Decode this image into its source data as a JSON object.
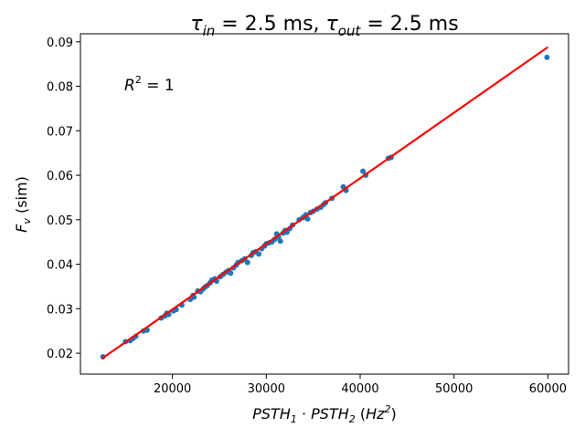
{
  "chart_data": {
    "type": "scatter",
    "title": {
      "tau": "τ",
      "in_sub": "in",
      "part1": " = 2.5 ms, ",
      "out_sub": "out",
      "part2": " = 2.5 ms"
    },
    "xlabel": {
      "v1": "PSTH",
      "s1": "1",
      "dot": " · ",
      "v2": "PSTH",
      "s2": "2",
      "unit_open": " (",
      "unit": "Hz",
      "unit_sup": "2",
      "unit_close": ")"
    },
    "ylabel": {
      "v": "F",
      "s": "v",
      "rest": " (sim)"
    },
    "annotation": {
      "v": "R",
      "sup": "2",
      "rest": " = 1"
    },
    "xlim": [
      10200,
      62200
    ],
    "ylim": [
      0.0153,
      0.0918
    ],
    "xticks": [
      20000,
      30000,
      40000,
      50000,
      60000
    ],
    "xtick_labels": [
      "20000",
      "30000",
      "40000",
      "50000",
      "60000"
    ],
    "yticks": [
      0.02,
      0.03,
      0.04,
      0.05,
      0.06,
      0.07,
      0.08,
      0.09
    ],
    "ytick_labels": [
      "0.02",
      "0.03",
      "0.04",
      "0.05",
      "0.06",
      "0.07",
      "0.08",
      "0.09"
    ],
    "grid": false,
    "colors": {
      "points": "#1f77b4",
      "fit": "#ff0000"
    },
    "fit_line": {
      "x": [
        12500,
        60000
      ],
      "y": [
        0.0188,
        0.0888
      ]
    },
    "points": [
      [
        12600,
        0.0192
      ],
      [
        15000,
        0.0226
      ],
      [
        15500,
        0.0228
      ],
      [
        15800,
        0.0233
      ],
      [
        16100,
        0.0238
      ],
      [
        16900,
        0.025
      ],
      [
        17300,
        0.0252
      ],
      [
        18800,
        0.0279
      ],
      [
        19200,
        0.0284
      ],
      [
        19400,
        0.029
      ],
      [
        19600,
        0.0287
      ],
      [
        20100,
        0.0295
      ],
      [
        20400,
        0.0298
      ],
      [
        21000,
        0.0308
      ],
      [
        21900,
        0.0321
      ],
      [
        22200,
        0.033
      ],
      [
        22300,
        0.0326
      ],
      [
        22700,
        0.034
      ],
      [
        23000,
        0.0338
      ],
      [
        23300,
        0.0345
      ],
      [
        23500,
        0.0349
      ],
      [
        23700,
        0.0352
      ],
      [
        24000,
        0.0358
      ],
      [
        24200,
        0.0364
      ],
      [
        24500,
        0.0367
      ],
      [
        24700,
        0.0362
      ],
      [
        25100,
        0.0372
      ],
      [
        25400,
        0.0377
      ],
      [
        25700,
        0.0382
      ],
      [
        26000,
        0.0386
      ],
      [
        26200,
        0.038
      ],
      [
        26500,
        0.0392
      ],
      [
        26800,
        0.0398
      ],
      [
        27000,
        0.0404
      ],
      [
        27400,
        0.0408
      ],
      [
        27700,
        0.0412
      ],
      [
        28000,
        0.0404
      ],
      [
        28400,
        0.042
      ],
      [
        28600,
        0.0426
      ],
      [
        28900,
        0.0428
      ],
      [
        29200,
        0.0423
      ],
      [
        29500,
        0.0435
      ],
      [
        29800,
        0.0441
      ],
      [
        30000,
        0.0446
      ],
      [
        30300,
        0.0448
      ],
      [
        30600,
        0.045
      ],
      [
        30900,
        0.0456
      ],
      [
        31100,
        0.0468
      ],
      [
        31300,
        0.0461
      ],
      [
        31500,
        0.0452
      ],
      [
        31800,
        0.047
      ],
      [
        32000,
        0.0476
      ],
      [
        32200,
        0.0472
      ],
      [
        32500,
        0.048
      ],
      [
        32800,
        0.0488
      ],
      [
        33500,
        0.05
      ],
      [
        33900,
        0.0505
      ],
      [
        34200,
        0.0511
      ],
      [
        34400,
        0.0502
      ],
      [
        34700,
        0.0516
      ],
      [
        35000,
        0.0519
      ],
      [
        35400,
        0.0524
      ],
      [
        35800,
        0.0528
      ],
      [
        36100,
        0.0534
      ],
      [
        36300,
        0.0538
      ],
      [
        37000,
        0.0548
      ],
      [
        38200,
        0.0574
      ],
      [
        38500,
        0.0566
      ],
      [
        40300,
        0.0609
      ],
      [
        40600,
        0.06
      ],
      [
        43000,
        0.0638
      ],
      [
        43300,
        0.064
      ],
      [
        59900,
        0.0865
      ]
    ]
  }
}
